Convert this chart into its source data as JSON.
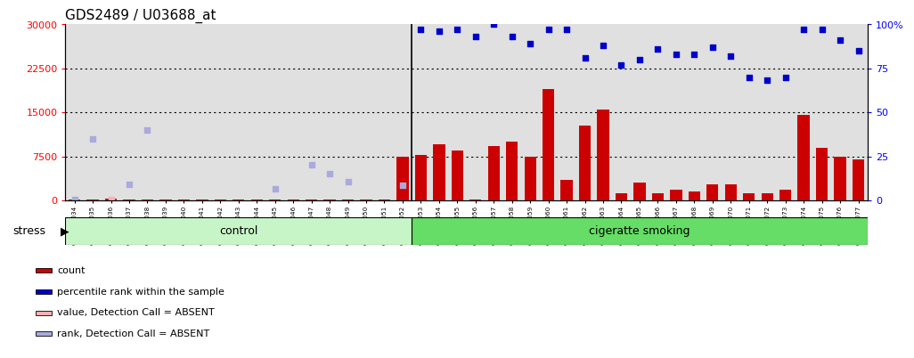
{
  "title": "GDS2489 / U03688_at",
  "samples": [
    "GSM114034",
    "GSM114035",
    "GSM114036",
    "GSM114037",
    "GSM114038",
    "GSM114039",
    "GSM114040",
    "GSM114041",
    "GSM114042",
    "GSM114043",
    "GSM114044",
    "GSM114045",
    "GSM114046",
    "GSM114047",
    "GSM114048",
    "GSM114049",
    "GSM114050",
    "GSM114051",
    "GSM114052",
    "GSM114053",
    "GSM114054",
    "GSM114055",
    "GSM114056",
    "GSM114057",
    "GSM114058",
    "GSM114059",
    "GSM114060",
    "GSM114061",
    "GSM114062",
    "GSM114063",
    "GSM114064",
    "GSM114065",
    "GSM114066",
    "GSM114067",
    "GSM114068",
    "GSM114069",
    "GSM114070",
    "GSM114071",
    "GSM114072",
    "GSM114073",
    "GSM114074",
    "GSM114075",
    "GSM114076",
    "GSM114077"
  ],
  "count_values": [
    80,
    120,
    300,
    100,
    200,
    150,
    100,
    200,
    150,
    150,
    100,
    150,
    150,
    150,
    100,
    80,
    80,
    80,
    7500,
    7800,
    9500,
    8500,
    200,
    9200,
    10000,
    7500,
    19000,
    3500,
    12800,
    15500,
    1200,
    3000,
    1200,
    1800,
    1500,
    2800,
    2800,
    1200,
    1200,
    1800,
    14500,
    9000,
    7500,
    7000
  ],
  "percentile_rank_raw": [
    null,
    null,
    null,
    null,
    null,
    null,
    null,
    null,
    null,
    null,
    null,
    null,
    null,
    null,
    null,
    null,
    null,
    null,
    null,
    97,
    96,
    97,
    93,
    100,
    93,
    89,
    97,
    97,
    81,
    88,
    77,
    80,
    86,
    83,
    83,
    87,
    82,
    70,
    68,
    70,
    97,
    97,
    91,
    85
  ],
  "absent_value_data": [
    null,
    null,
    80,
    null,
    null,
    null,
    null,
    null,
    null,
    null,
    null,
    null,
    null,
    null,
    null,
    null,
    null,
    null,
    null,
    null,
    null,
    null,
    null,
    null,
    null,
    null,
    null,
    null,
    null,
    null,
    null,
    null,
    null,
    null,
    null,
    null,
    null,
    null,
    null,
    null,
    null,
    null,
    null,
    null
  ],
  "absent_rank_raw": [
    80,
    10500,
    null,
    2700,
    12000,
    null,
    null,
    null,
    null,
    null,
    null,
    2000,
    null,
    6000,
    4500,
    3200,
    null,
    null,
    2500,
    null,
    null,
    null,
    null,
    null,
    null,
    null,
    null,
    null,
    null,
    null,
    null,
    null,
    null,
    null,
    null,
    null,
    null,
    null,
    null,
    null,
    null,
    null,
    null,
    null
  ],
  "control_count": 19,
  "group_labels": [
    "control",
    "cigeratte smoking"
  ],
  "control_color": "#c8f5c8",
  "smoking_color": "#66dd66",
  "stress_label": "stress",
  "left_ylim": [
    0,
    30000
  ],
  "right_ylim": [
    0,
    100
  ],
  "left_yticks": [
    0,
    7500,
    15000,
    22500,
    30000
  ],
  "right_yticks": [
    0,
    25,
    50,
    75,
    100
  ],
  "bar_color": "#CC0000",
  "blue_color": "#0000CC",
  "absent_value_color": "#FFB0B0",
  "absent_rank_color": "#AAAADD",
  "plot_bg": "#E0E0E0",
  "tick_label_bg": "#D8D8D8",
  "title_fontsize": 11
}
